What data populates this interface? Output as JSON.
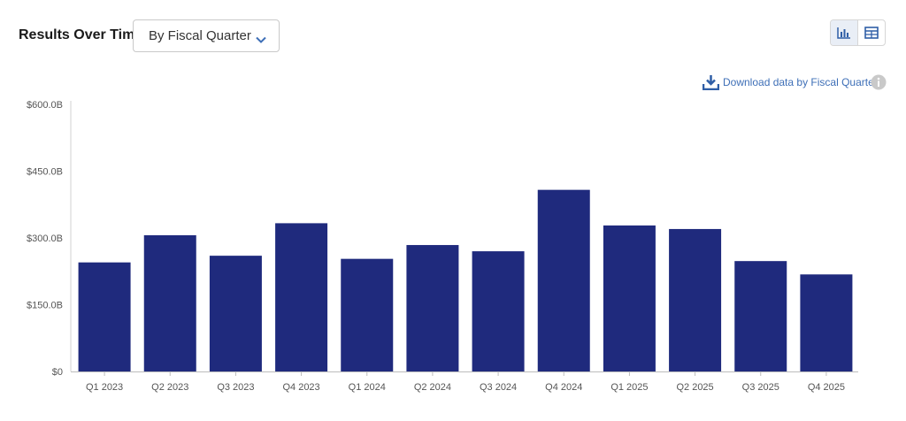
{
  "header": {
    "title": "Results Over Time",
    "dropdown_value": "By Fiscal Quarter",
    "download_label": "Download data by Fiscal Quarter"
  },
  "icons": {
    "chevron": "chevron-down-icon",
    "bar_view": "bar-chart-icon",
    "table_view": "table-icon",
    "download": "download-icon",
    "info": "info-icon"
  },
  "colors": {
    "bar": "#1f2a7d",
    "accent": "#3e6fb7",
    "axis_text": "#555555"
  },
  "chart_data": {
    "type": "bar",
    "categories": [
      "Q1 2023",
      "Q2 2023",
      "Q3 2023",
      "Q4 2023",
      "Q1 2024",
      "Q2 2024",
      "Q3 2024",
      "Q4 2024",
      "Q1 2025",
      "Q2 2025",
      "Q3 2025",
      "Q4 2025"
    ],
    "values": [
      245,
      306,
      260,
      333,
      253,
      284,
      270,
      408,
      328,
      320,
      248,
      218
    ],
    "yticks": [
      "$0",
      "$150.0B",
      "$300.0B",
      "$450.0B",
      "$600.0B"
    ],
    "ylim": [
      0,
      600
    ],
    "ytick_values": [
      0,
      150,
      300,
      450,
      600
    ],
    "grid": false,
    "title": "",
    "xlabel": "",
    "ylabel": ""
  }
}
